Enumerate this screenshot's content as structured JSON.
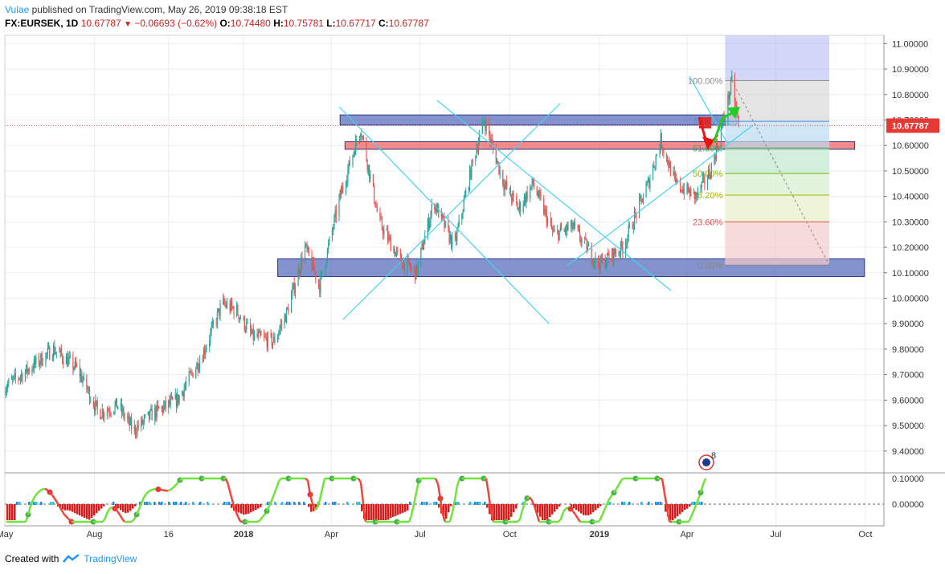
{
  "header": {
    "author": "Vulae",
    "published_text": "published on TradingView.com, May 26, 2019 09:38:18 EST",
    "symbol": "FX:EURSEK, 1D",
    "last": "10.67787",
    "change": "−0.06693 (−0.62%)",
    "o_label": "O:",
    "o": "10.74480",
    "h_label": "H:",
    "h": "10.75781",
    "l_label": "L:",
    "l": "10.67717",
    "c_label": "C:",
    "c": "10.67787"
  },
  "footer": {
    "created_with": "Created with",
    "brand": "TradingView"
  },
  "indicator": {
    "badge_count": "8"
  },
  "colors": {
    "up": "#26a69a",
    "down": "#ef5350",
    "grid": "#ececec",
    "trend": "#45d3ee",
    "zone_blue": "#5b6dbe",
    "zone_red": "#f06464",
    "price_line": "#f06464",
    "arrow_up": "#22cc22",
    "arrow_down": "#ee1111"
  },
  "chart_data": {
    "type": "candlestick",
    "symbol": "FX:EURSEK",
    "interval": "1D",
    "y_ticks": [
      "11.00000",
      "10.90000",
      "10.80000",
      "10.70000",
      "10.60000",
      "10.50000",
      "10.40000",
      "10.30000",
      "10.20000",
      "10.10000",
      "10.00000",
      "9.90000",
      "9.80000",
      "9.70000",
      "9.60000",
      "9.50000",
      "9.40000"
    ],
    "ylim": [
      9.33,
      11.02
    ],
    "x_ticks": [
      "May",
      "Aug",
      "16",
      "2018",
      "Apr",
      "Jul",
      "Oct",
      "2019",
      "Apr",
      "Jul",
      "Oct"
    ],
    "x_range": [
      "2017-05-01",
      "2019-10-20"
    ],
    "last_price": "10.67787",
    "price_path": [
      [
        "2017-05-01",
        9.65
      ],
      [
        "2017-05-25",
        9.72
      ],
      [
        "2017-06-20",
        9.8
      ],
      [
        "2017-07-15",
        9.72
      ],
      [
        "2017-08-05",
        9.55
      ],
      [
        "2017-08-25",
        9.58
      ],
      [
        "2017-09-10",
        9.48
      ],
      [
        "2017-10-01",
        9.55
      ],
      [
        "2017-10-25",
        9.6
      ],
      [
        "2017-11-20",
        9.78
      ],
      [
        "2017-12-10",
        9.98
      ],
      [
        "2017-12-25",
        9.95
      ],
      [
        "2018-01-10",
        9.85
      ],
      [
        "2018-02-01",
        9.83
      ],
      [
        "2018-02-15",
        9.95
      ],
      [
        "2018-03-05",
        10.2
      ],
      [
        "2018-03-20",
        10.05
      ],
      [
        "2018-04-10",
        10.4
      ],
      [
        "2018-05-01",
        10.67
      ],
      [
        "2018-05-20",
        10.3
      ],
      [
        "2018-06-10",
        10.15
      ],
      [
        "2018-06-27",
        10.1
      ],
      [
        "2018-07-15",
        10.38
      ],
      [
        "2018-08-05",
        10.2
      ],
      [
        "2018-08-25",
        10.55
      ],
      [
        "2018-09-05",
        10.7
      ],
      [
        "2018-09-25",
        10.45
      ],
      [
        "2018-10-10",
        10.35
      ],
      [
        "2018-10-25",
        10.45
      ],
      [
        "2018-11-15",
        10.25
      ],
      [
        "2018-12-05",
        10.28
      ],
      [
        "2018-12-31",
        10.13
      ],
      [
        "2019-01-25",
        10.2
      ],
      [
        "2019-02-20",
        10.45
      ],
      [
        "2019-03-05",
        10.62
      ],
      [
        "2019-03-20",
        10.45
      ],
      [
        "2019-04-10",
        10.4
      ],
      [
        "2019-04-25",
        10.5
      ],
      [
        "2019-05-10",
        10.72
      ],
      [
        "2019-05-17",
        10.85
      ],
      [
        "2019-05-24",
        10.68
      ]
    ],
    "fib_levels": [
      {
        "label": "100.00%",
        "price": 10.855,
        "color": "#888888"
      },
      {
        "label": "78.60%",
        "price": 10.695,
        "color": "#4a90d9"
      },
      {
        "label": "61.80%",
        "price": 10.59,
        "color": "#3da85a"
      },
      {
        "label": "50.00%",
        "price": 10.49,
        "color": "#7ab800"
      },
      {
        "label": "38.20%",
        "price": 10.405,
        "color": "#a8b400"
      },
      {
        "label": "23.60%",
        "price": 10.3,
        "color": "#e05050"
      },
      {
        "label": "0.00%",
        "price": 10.13,
        "color": "#888888"
      }
    ],
    "oscillator_ticks": [
      "0.10000",
      "0.00000"
    ]
  }
}
